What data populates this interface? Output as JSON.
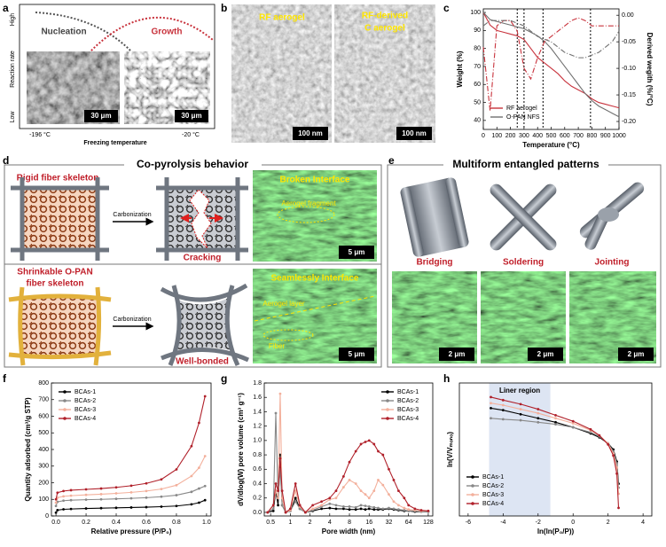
{
  "panel_labels": [
    "a",
    "b",
    "c",
    "d",
    "e",
    "f",
    "g",
    "h"
  ],
  "panel_a": {
    "y_high": "High",
    "y_low": "Low",
    "ylabel": "Reaction rate",
    "curve_1": "Nucleation",
    "curve_2": "Growth",
    "scale_bar_1": "30 μm",
    "scale_bar_2": "30 μm",
    "x_left": "-196 °C",
    "x_right": "-20 °C",
    "xlabel": "Freezing temperature"
  },
  "panel_b": {
    "image_1": "RF aerogel",
    "image_2": [
      "RF-derived",
      "C aerogel"
    ],
    "scale_bar_1": "100 nm",
    "scale_bar_2": "100 nm"
  },
  "panel_d": {
    "title": "Co-pyrolysis behavior",
    "top": {
      "skeleton": "Rigid fiber skeleton",
      "process": "Carbonization",
      "result": "Cracking",
      "image_title": "Broken Interface",
      "image_note": "Aerogel fragment",
      "scale_bar": "5 μm"
    },
    "bottom": {
      "skeleton": [
        "Shrinkable O-PAN",
        "fiber skeleton"
      ],
      "process": "Carbonization",
      "result": "Well-bonded",
      "image_title": "Seamlessly Interface",
      "image_note_1": "Aerogel layer",
      "image_note_2": "Fiber",
      "scale_bar": "5 μm"
    }
  },
  "panel_e": {
    "title": "Multiform entangled patterns",
    "patterns": [
      "Bridging",
      "Soldering",
      "Jointing"
    ],
    "scale_bars": [
      "2 μm",
      "2 μm",
      "2 μm"
    ]
  },
  "chart_data": [
    {
      "type": "line",
      "xlabel": "Temperature (°C)",
      "ylabel": "Weight (%)",
      "y2label": "Derived wegith (%/°C)",
      "x": [
        0,
        50,
        100,
        150,
        200,
        250,
        300,
        350,
        400,
        450,
        500,
        550,
        600,
        650,
        700,
        750,
        800,
        850,
        900,
        950,
        1000
      ],
      "xlim": [
        0,
        1000
      ],
      "xticks": [
        0,
        100,
        200,
        300,
        400,
        500,
        600,
        700,
        800,
        900,
        1000
      ],
      "ylim": [
        35,
        102
      ],
      "yticks": [
        40,
        50,
        60,
        70,
        80,
        90,
        100
      ],
      "y2lim": [
        -0.215,
        0.012
      ],
      "y2ticks": [
        {
          "value": -0.2,
          "label": "-0.20"
        },
        -0.15,
        {
          "value": -0.1,
          "label": "-0.10"
        },
        -0.05,
        {
          "value": 0,
          "label": "0.00"
        }
      ],
      "vlines": [
        250,
        300,
        440,
        790
      ],
      "legend": "lower left",
      "series": [
        {
          "name": "RF aerogel",
          "color": "#c8323c",
          "style": "solid",
          "values": [
            100,
            93,
            90,
            89,
            88,
            87,
            85,
            80,
            75,
            72,
            69,
            66,
            62,
            59,
            57,
            55,
            52,
            50,
            49,
            48,
            47
          ]
        },
        {
          "name": "O-PAN NFS",
          "color": "#707070",
          "style": "solid",
          "values": [
            100,
            96,
            95,
            94,
            93,
            92,
            91,
            89,
            87,
            84,
            80,
            75,
            70,
            65,
            60,
            55,
            51,
            48,
            46,
            44,
            42
          ]
        },
        {
          "color": "#c8323c",
          "style": "dashdot",
          "axis": "y2",
          "values": [
            -0.06,
            -0.18,
            -0.02,
            -0.01,
            -0.01,
            -0.03,
            -0.1,
            -0.12,
            -0.08,
            -0.05,
            -0.04,
            -0.03,
            -0.02,
            -0.01,
            -0.005,
            -0.01,
            -0.02,
            -0.02,
            -0.02,
            -0.02,
            -0.02
          ]
        },
        {
          "color": "#707070",
          "style": "dashdot",
          "axis": "y2",
          "values": [
            -0.02,
            -0.01,
            -0.01,
            -0.01,
            -0.01,
            -0.015,
            -0.02,
            -0.03,
            -0.04,
            -0.045,
            -0.05,
            -0.06,
            -0.07,
            -0.075,
            -0.08,
            -0.08,
            -0.075,
            -0.07,
            -0.06,
            -0.05,
            -0.03
          ]
        }
      ]
    },
    {
      "type": "line",
      "xlabel": "Relative pressure (P/P₀)",
      "ylabel": "Quantity adsorbed (cm³/g STP)",
      "x": [
        0,
        0.01,
        0.05,
        0.1,
        0.2,
        0.3,
        0.4,
        0.5,
        0.6,
        0.7,
        0.8,
        0.9,
        0.95,
        0.99
      ],
      "xlim": [
        -0.03,
        1.03
      ],
      "xticks": [
        {
          "value": 0,
          "label": "0.0"
        },
        0.2,
        0.4,
        0.6,
        0.8,
        {
          "value": 1,
          "label": "1.0"
        }
      ],
      "ylim": [
        0,
        800
      ],
      "yticks": [
        0,
        100,
        200,
        300,
        400,
        500,
        600,
        700,
        800
      ],
      "legend": "upper left",
      "markers": true,
      "series": [
        {
          "name": "BCAs-1",
          "color": "#000000",
          "style": "solid",
          "values": [
            20,
            35,
            40,
            42,
            45,
            47,
            49,
            51,
            53,
            56,
            60,
            70,
            80,
            95
          ]
        },
        {
          "name": "BCAs-2",
          "color": "#888888",
          "style": "solid",
          "values": [
            60,
            85,
            92,
            95,
            98,
            100,
            103,
            106,
            110,
            116,
            125,
            145,
            165,
            180
          ]
        },
        {
          "name": "BCAs-3",
          "color": "#f3b09c",
          "style": "solid",
          "values": [
            80,
            110,
            118,
            122,
            127,
            131,
            136,
            142,
            150,
            162,
            185,
            240,
            290,
            360
          ]
        },
        {
          "name": "BCAs-4",
          "color": "#b0202a",
          "style": "solid",
          "values": [
            100,
            140,
            150,
            155,
            160,
            165,
            172,
            182,
            196,
            220,
            280,
            420,
            560,
            720
          ]
        }
      ]
    },
    {
      "type": "line",
      "xlabel": "Pore width (nm)",
      "ylabel": "dV/dlog(W) pore volume (cm³ g⁻¹)",
      "xscale": "log",
      "x": [
        0.45,
        0.55,
        0.6,
        0.65,
        0.7,
        0.75,
        0.85,
        1,
        1.2,
        1.4,
        1.7,
        2.2,
        3,
        4,
        5,
        6.5,
        8,
        10,
        12,
        14,
        16,
        19,
        22,
        26,
        32,
        38,
        45,
        55,
        64,
        80,
        100,
        128
      ],
      "xlim": [
        0.4,
        150
      ],
      "xticks": [
        0.5,
        1,
        2,
        4,
        8,
        16,
        32,
        64,
        128
      ],
      "ylim": [
        -0.05,
        1.8
      ],
      "yticks": [
        {
          "value": 0,
          "label": "0.0"
        },
        0.2,
        0.4,
        0.6,
        0.8,
        {
          "value": 1,
          "label": "1.0"
        },
        1.2,
        1.4,
        1.6,
        1.8
      ],
      "legend": "upper right",
      "markers": true,
      "series": [
        {
          "name": "BCAs-1",
          "color": "#000000",
          "style": "solid",
          "values": [
            0,
            0.02,
            0.3,
            0.1,
            0.8,
            0.1,
            0,
            0.02,
            0.2,
            0.05,
            0,
            0.02,
            0.05,
            0.06,
            0.05,
            0.05,
            0.04,
            0.04,
            0.05,
            0.04,
            0.05,
            0.04,
            0.04,
            0.04,
            0.05,
            0.04,
            0.03,
            0.02,
            0.02,
            0.01,
            0.01,
            0.01
          ]
        },
        {
          "name": "BCAs-2",
          "color": "#888888",
          "style": "solid",
          "values": [
            0,
            0.05,
            1.38,
            0.2,
            0.6,
            0.1,
            0,
            0.02,
            0.15,
            0.05,
            0,
            0.03,
            0.08,
            0.12,
            0.1,
            0.08,
            0.08,
            0.07,
            0.1,
            0.09,
            0.08,
            0.07,
            0.06,
            0.05,
            0.06,
            0.05,
            0.04,
            0.03,
            0.02,
            0.02,
            0.01,
            0.01
          ]
        },
        {
          "name": "BCAs-3",
          "color": "#f3b09c",
          "style": "solid",
          "values": [
            0,
            0.1,
            0.3,
            0.2,
            1.65,
            0.2,
            0,
            0.03,
            0.3,
            0.08,
            0,
            0.05,
            0.1,
            0.18,
            0.2,
            0.35,
            0.45,
            0.4,
            0.3,
            0.25,
            0.2,
            0.3,
            0.45,
            0.38,
            0.25,
            0.15,
            0.1,
            0.06,
            0.04,
            0.03,
            0.02,
            0.02
          ]
        },
        {
          "name": "BCAs-4",
          "color": "#b0202a",
          "style": "solid",
          "values": [
            0,
            0.1,
            0.4,
            0.3,
            0.75,
            0.3,
            0,
            0.05,
            0.4,
            0.1,
            0,
            0.1,
            0.15,
            0.2,
            0.3,
            0.5,
            0.7,
            0.85,
            0.95,
            0.98,
            1.0,
            0.95,
            0.85,
            0.8,
            0.6,
            0.45,
            0.3,
            0.2,
            0.1,
            0.05,
            0.03,
            0.02
          ]
        }
      ]
    },
    {
      "type": "line",
      "xlabel": "ln(ln(P₀/P))",
      "ylabel": "ln(V/Vₘₒₙₒ)",
      "x": [
        -4.7,
        -4,
        -3,
        -2,
        -1,
        0,
        1,
        1.5,
        2,
        2.3,
        2.5,
        2.6
      ],
      "xlim": [
        -6.5,
        4.5
      ],
      "xticks": [
        -6,
        -4,
        -2,
        0,
        2,
        4
      ],
      "ylim": [
        -4.6,
        2
      ],
      "shade": [
        -4.8,
        -1.3
      ],
      "shade_label": "Liner region",
      "legend": "lower left",
      "markers": true,
      "series": [
        {
          "name": "BCAs-1",
          "color": "#000000",
          "style": "solid",
          "values": [
            0.75,
            0.65,
            0.45,
            0.25,
            0.05,
            -0.2,
            -0.5,
            -0.7,
            -1.0,
            -1.3,
            -1.9,
            -3.0
          ]
        },
        {
          "name": "BCAs-2",
          "color": "#888888",
          "style": "solid",
          "values": [
            0.25,
            0.2,
            0.15,
            0.05,
            -0.05,
            -0.2,
            -0.45,
            -0.65,
            -1.0,
            -1.4,
            -2.0,
            -3.2
          ]
        },
        {
          "name": "BCAs-3",
          "color": "#f3b09c",
          "style": "solid",
          "values": [
            1.0,
            0.9,
            0.7,
            0.5,
            0.25,
            0,
            -0.35,
            -0.6,
            -1.0,
            -1.5,
            -2.2,
            -3.5
          ]
        },
        {
          "name": "BCAs-4",
          "color": "#b0202a",
          "style": "solid",
          "values": [
            1.3,
            1.15,
            0.95,
            0.7,
            0.4,
            0.1,
            -0.3,
            -0.6,
            -1.05,
            -1.6,
            -2.5,
            -4.2
          ]
        }
      ]
    }
  ]
}
